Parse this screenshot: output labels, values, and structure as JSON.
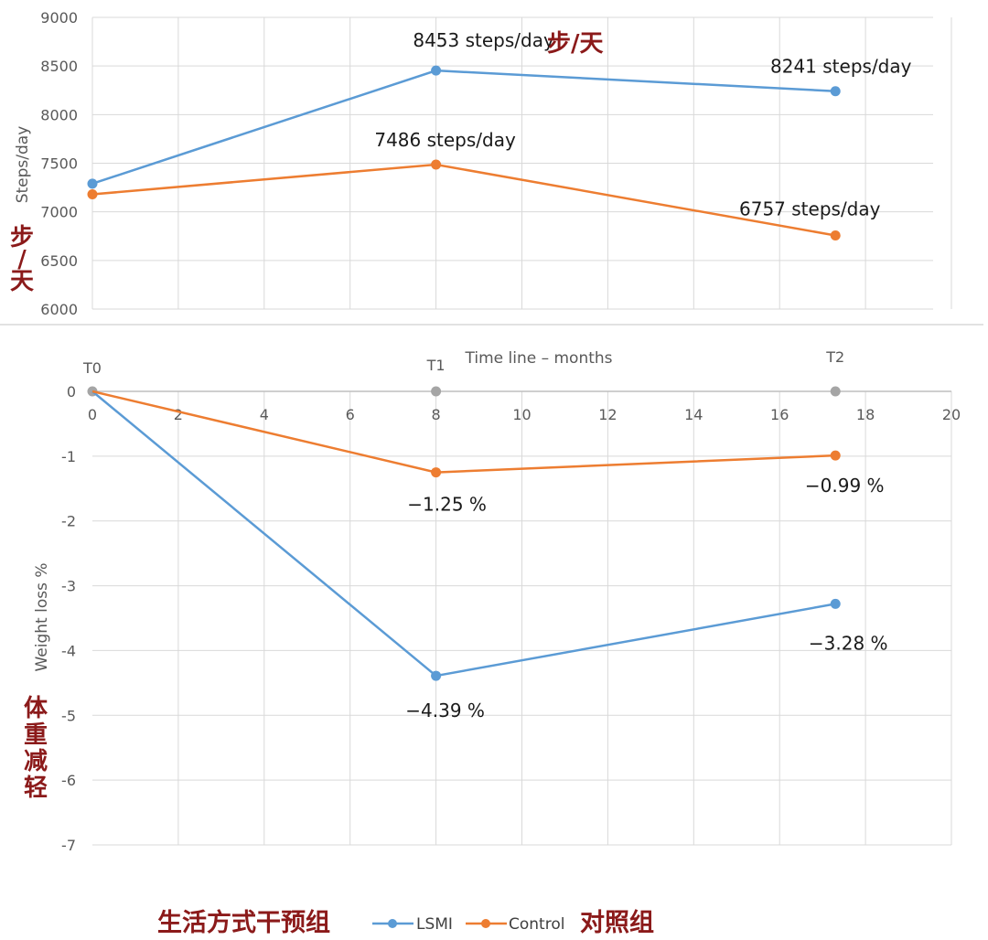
{
  "chart_data": [
    {
      "type": "line",
      "xlabel": "",
      "ylabel": "Steps/day",
      "ylabel_cn": "步/天",
      "annotation_cn": "步/天",
      "ylim": [
        6000,
        9000
      ],
      "yticks": [
        "9000",
        "8500",
        "8000",
        "7500",
        "7000",
        "6500",
        "6000"
      ],
      "x": [
        0,
        8,
        17.3
      ],
      "series": [
        {
          "name": "LSMI",
          "color": "#5b9bd5",
          "values": [
            7290,
            8453,
            8241
          ],
          "labels": [
            "",
            "8453 steps/day",
            "8241 steps/day"
          ]
        },
        {
          "name": "Control",
          "color": "#ed7d31",
          "values": [
            7180,
            7486,
            6757
          ],
          "labels": [
            "",
            "7486 steps/day",
            "6757 steps/day"
          ]
        }
      ]
    },
    {
      "type": "line",
      "xlabel": "Time line – months",
      "ylabel": "Weight loss %",
      "ylabel_cn": "体重减轻",
      "xlim": [
        0,
        20
      ],
      "ylim": [
        -7,
        0
      ],
      "xticks": [
        "0",
        "2",
        "4",
        "6",
        "8",
        "10",
        "12",
        "14",
        "16",
        "18",
        "20"
      ],
      "yticks": [
        "0",
        "-1",
        "-2",
        "-3",
        "-4",
        "-5",
        "-6",
        "-7"
      ],
      "timepoints": [
        {
          "label": "T0",
          "x": 0
        },
        {
          "label": "T1",
          "x": 8
        },
        {
          "label": "T2",
          "x": 17.3
        }
      ],
      "x": [
        0,
        8,
        17.3
      ],
      "series": [
        {
          "name": "LSMI",
          "color": "#5b9bd5",
          "values": [
            0,
            -4.39,
            -3.28
          ],
          "labels": [
            "",
            "−4.39 %",
            "−3.28 %"
          ]
        },
        {
          "name": "Control",
          "color": "#ed7d31",
          "values": [
            0,
            -1.25,
            -0.99
          ],
          "labels": [
            "",
            "−1.25 %",
            "−0.99 %"
          ]
        }
      ]
    }
  ],
  "legend": {
    "items": [
      {
        "label": "LSMI",
        "label_cn": "生活方式干预组",
        "color": "#5b9bd5"
      },
      {
        "label": "Control",
        "label_cn": "对照组",
        "color": "#ed7d31"
      }
    ]
  },
  "gridline_color": "#d9d9d9",
  "timepoint_color": "#a5a5a5"
}
